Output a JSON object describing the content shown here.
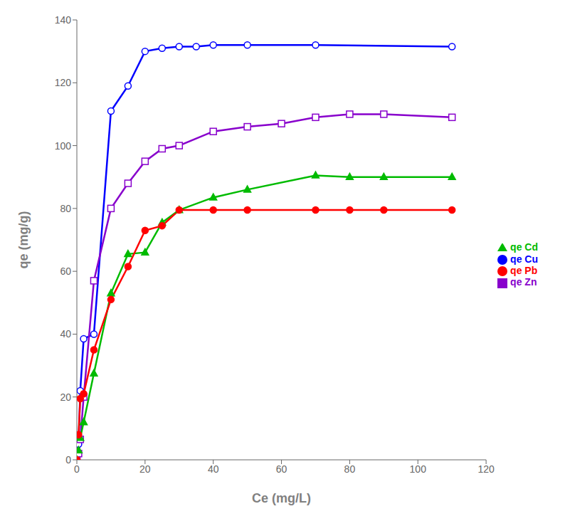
{
  "chart_data": {
    "type": "line",
    "xlabel": "Ce (mg/L)",
    "ylabel": "qe (mg/g)",
    "xlim": [
      0,
      120
    ],
    "ylim": [
      0,
      140
    ],
    "xticks": [
      0,
      20,
      40,
      60,
      80,
      100,
      120
    ],
    "yticks": [
      0,
      20,
      40,
      60,
      80,
      100,
      120,
      140
    ],
    "grid": false,
    "legend": "right",
    "series": [
      {
        "name": "qe Cu",
        "color": "#0000FF",
        "marker": "open_circle",
        "x": [
          0.0,
          0.5,
          1.0,
          2.0,
          5.0,
          10.0,
          15.0,
          20.0,
          25.0,
          30.0,
          35.0,
          40.0,
          50.0,
          70.0,
          110.0
        ],
        "values": [
          0.0,
          5.0,
          22.0,
          38.5,
          40.0,
          111.0,
          119.0,
          130.0,
          131.0,
          131.5,
          131.5,
          132.0,
          132.0,
          132.0,
          131.5
        ]
      },
      {
        "name": "qe Zn",
        "color": "#8800CC",
        "marker": "open_square",
        "x": [
          0.0,
          0.5,
          1.0,
          2.0,
          5.0,
          10.0,
          15.0,
          20.0,
          25.0,
          30.0,
          40.0,
          50.0,
          60.0,
          70.0,
          80.0,
          90.0,
          110.0
        ],
        "values": [
          0.0,
          2.0,
          6.5,
          20.0,
          57.0,
          80.0,
          88.0,
          95.0,
          99.0,
          100.0,
          104.5,
          106.0,
          107.0,
          109.0,
          110.0,
          110.0,
          109.0
        ]
      },
      {
        "name": "qe Cd",
        "color": "#00BB00",
        "marker": "triangle",
        "x": [
          0.0,
          0.5,
          1.0,
          2.0,
          5.0,
          10.0,
          15.0,
          20.0,
          25.0,
          30.0,
          40.0,
          50.0,
          70.0,
          80.0,
          90.0,
          110.0
        ],
        "values": [
          0.0,
          3.0,
          7.0,
          12.0,
          27.5,
          53.0,
          65.5,
          66.0,
          75.5,
          79.5,
          83.5,
          86.0,
          90.5,
          90.0,
          90.0,
          90.0
        ]
      },
      {
        "name": "qe Pb",
        "color": "#FF0000",
        "marker": "circle",
        "x": [
          0.0,
          0.5,
          1.0,
          2.0,
          5.0,
          10.0,
          15.0,
          20.0,
          25.0,
          30.0,
          40.0,
          50.0,
          70.0,
          80.0,
          90.0,
          110.0
        ],
        "values": [
          0.0,
          8.0,
          19.5,
          21.0,
          35.0,
          51.0,
          61.5,
          73.0,
          74.5,
          79.5,
          79.5,
          79.5,
          79.5,
          79.5,
          79.5,
          79.5
        ]
      }
    ]
  }
}
